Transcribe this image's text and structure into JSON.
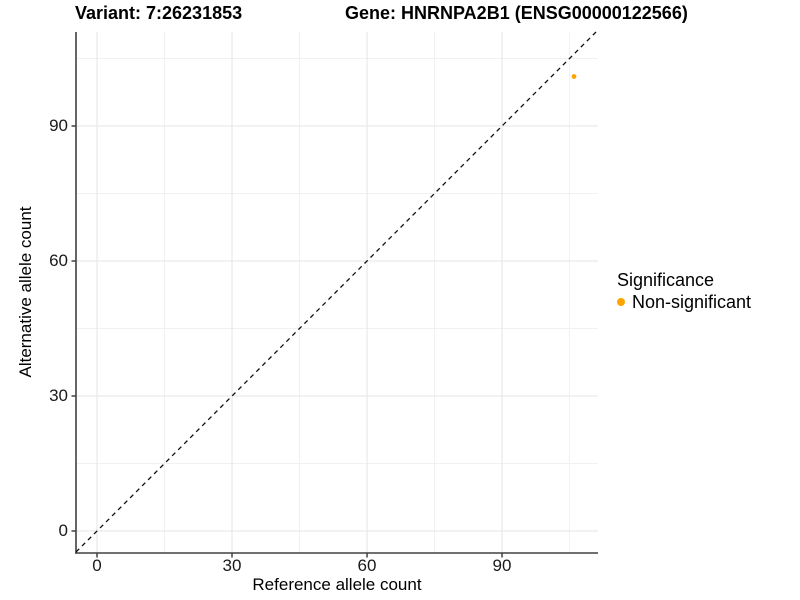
{
  "header": {
    "variant_title": "Variant: 7:26231853",
    "gene_title": "Gene: HNRNPA2B1 (ENSG00000122566)"
  },
  "chart_data": {
    "type": "scatter",
    "title": "Variant: 7:26231853 — Gene: HNRNPA2B1 (ENSG00000122566)",
    "xlabel": "Reference allele count",
    "ylabel": "Alternative allele count",
    "xlim": [
      -4.67,
      111.33
    ],
    "ylim": [
      -4.89,
      110.89
    ],
    "x_major_ticks": [
      0,
      30,
      60,
      90
    ],
    "y_major_ticks": [
      0,
      30,
      60,
      90
    ],
    "x_minor_ticks": [
      15,
      45,
      75,
      105
    ],
    "y_minor_ticks": [
      15,
      45,
      75,
      105
    ],
    "grid": "major and minor gridlines, light gray on white",
    "reference_line": {
      "kind": "identity y=x",
      "style": "dashed",
      "color": "#111111"
    },
    "series": [
      {
        "name": "Non-significant",
        "marker": "circle",
        "color": "#FFA500",
        "points": [
          {
            "x": 106,
            "y": 101
          }
        ]
      }
    ],
    "legend": {
      "title": "Significance",
      "position": "right",
      "entries": [
        {
          "label": "Non-significant",
          "color": "#FFA500"
        }
      ]
    }
  },
  "colors": {
    "background": "#FFFFFF",
    "grid_major": "#E6E6E6",
    "grid_minor": "#F1F1F1",
    "axis_line": "#404040",
    "tick_text": "#1a1a1a",
    "point": "#FFA500"
  }
}
